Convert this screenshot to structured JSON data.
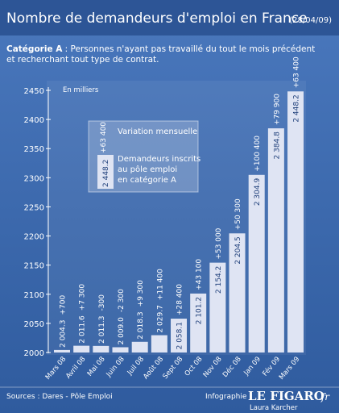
{
  "chart_data": {
    "type": "bar",
    "title": "Nombre de demandeurs d'emploi en France",
    "date": "(28/04/09)",
    "subtitle_label": "Catégorie A",
    "subtitle_lines": [
      " : Personnes n'ayant pas travaillé du tout le mois précédent",
      "et recherchant tout type de contrat."
    ],
    "y_unit": "En milliers",
    "categories": [
      "Mars 08",
      "Avril 08",
      "Mai 08",
      "Juin 08",
      "Juil 08",
      "Août 08",
      "Sept 08",
      "Oct 08",
      "Nov 08",
      "Déc 08",
      "Jan 09",
      "Fév 09",
      "Mars 09"
    ],
    "values": [
      2004.3,
      2011.6,
      2011.3,
      2009.0,
      2018.3,
      2029.7,
      2058.1,
      2101.2,
      2154.2,
      2204.5,
      2304.9,
      2384.8,
      2448.2
    ],
    "value_labels": [
      "2 004.3",
      "2 011.6",
      "2 011.3",
      "2 009.0",
      "2 018.3",
      "2 029.7",
      "2 058.1",
      "2 101.2",
      "2 154.2",
      "2 204.5",
      "2 304.9",
      "2 384.8",
      "2 448.2"
    ],
    "variation_labels": [
      "+700",
      "+7 300",
      "-300",
      "-2 300",
      "+9 300",
      "+11 400",
      "+28 400",
      "+43 100",
      "+53 000",
      "+50 300",
      "+100 400",
      "+79 900",
      "+63 400"
    ],
    "color": "#dfe4f3",
    "ylim": [
      2000,
      2450
    ],
    "yticks": [
      2000,
      2050,
      2100,
      2150,
      2200,
      2250,
      2300,
      2350,
      2400,
      2450
    ],
    "grid": false,
    "legend": {
      "title": "Variation mensuelle",
      "sample_variation": "+63 400",
      "sample_value": "2 448.2",
      "description": [
        "Demandeurs inscrits",
        "au pôle emploi",
        "en catégorie A"
      ]
    },
    "source": "Sources : Dares - Pôle Emploi",
    "credit_label": "Infographie",
    "brand": "LE FIGARO",
    "brand_suffix": ".fr",
    "author": "Laura Karcher"
  }
}
